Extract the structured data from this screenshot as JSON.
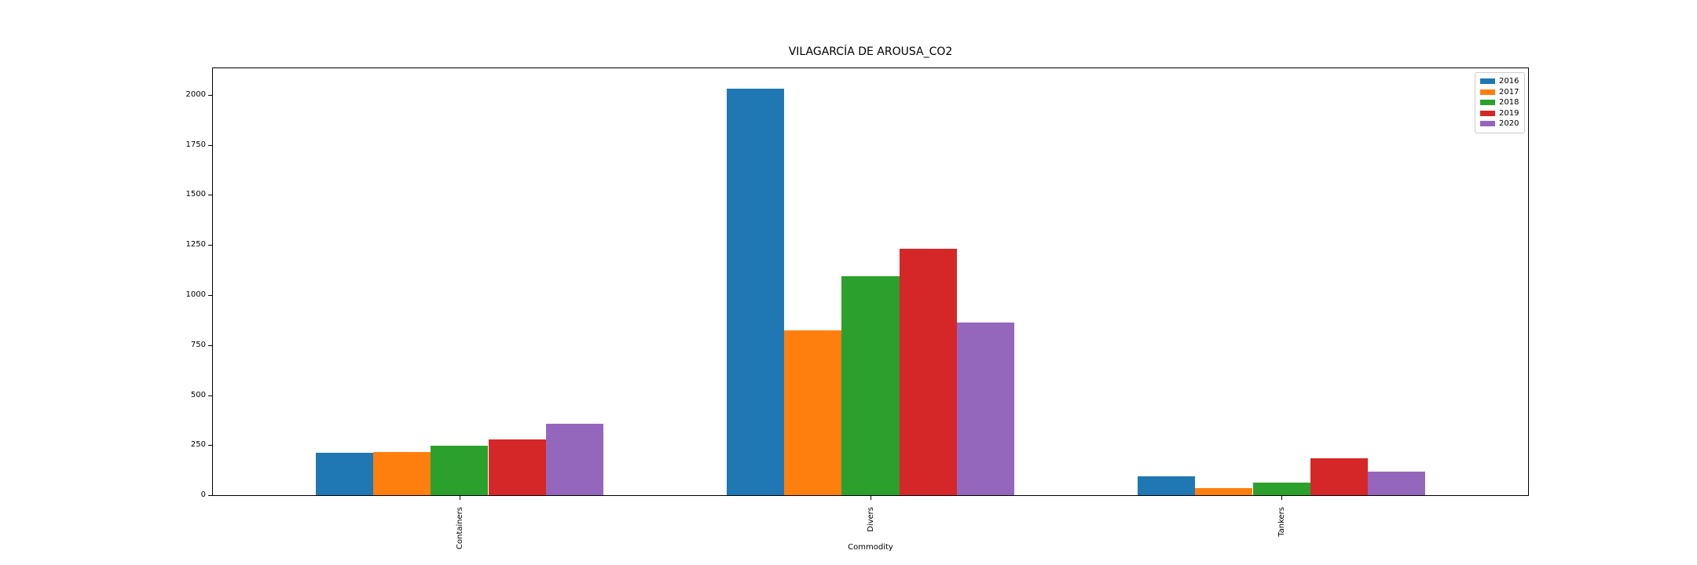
{
  "chart_data": {
    "type": "bar",
    "title": "VILAGARCÍA DE AROUSA_CO2",
    "xlabel": "Commodity",
    "ylabel": "",
    "categories": [
      "Containers",
      "Divers",
      "Tankers"
    ],
    "series": [
      {
        "name": "2016",
        "color": "#1f77b4",
        "values": [
          210,
          2030,
          95
        ]
      },
      {
        "name": "2017",
        "color": "#ff7f0e",
        "values": [
          215,
          824,
          35
        ]
      },
      {
        "name": "2018",
        "color": "#2ca02c",
        "values": [
          248,
          1093,
          62
        ]
      },
      {
        "name": "2019",
        "color": "#d62728",
        "values": [
          277,
          1230,
          183
        ]
      },
      {
        "name": "2020",
        "color": "#9467bd",
        "values": [
          358,
          862,
          118
        ]
      }
    ],
    "yticks": [
      0,
      250,
      500,
      750,
      1000,
      1250,
      1500,
      1750,
      2000
    ],
    "ylim": [
      0,
      2133
    ],
    "xlim": [
      -0.6,
      2.6
    ],
    "bar_width": 0.14,
    "x_tick_rotation": 90,
    "grid": false,
    "legend": {
      "position": "upper right",
      "entries": [
        "2016",
        "2017",
        "2018",
        "2019",
        "2020"
      ]
    },
    "background_color": "#ffffff",
    "spine_color": "#000000"
  }
}
